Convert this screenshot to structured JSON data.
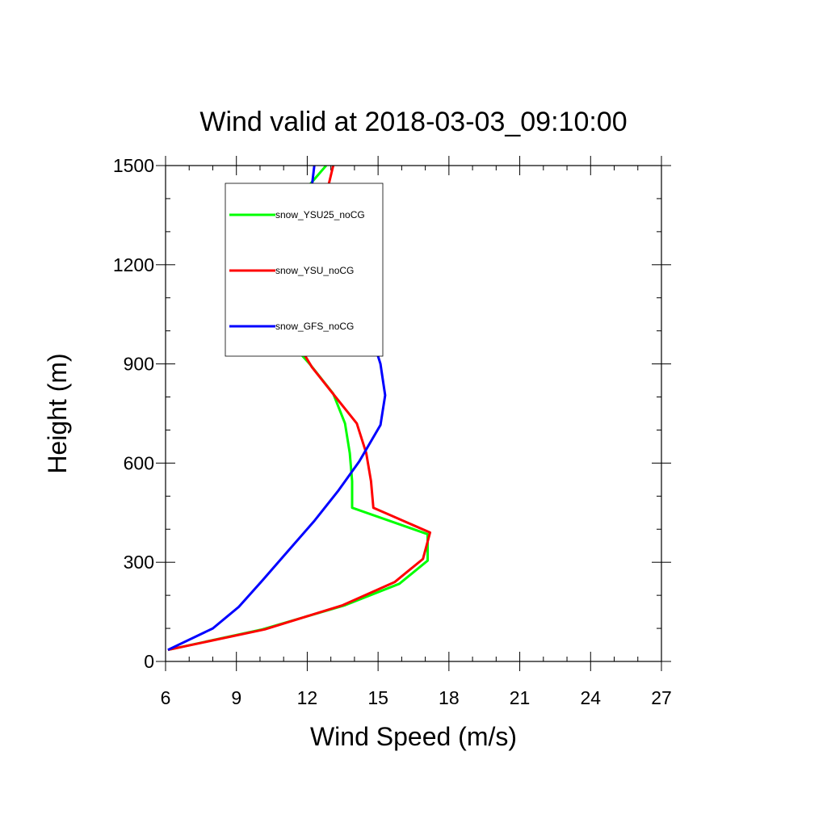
{
  "chart_data": {
    "type": "line",
    "title": "Wind valid at 2018-03-03_09:10:00",
    "xlabel": "Wind Speed (m/s)",
    "ylabel": "Height (m)",
    "xlim": [
      6,
      27
    ],
    "ylim": [
      0,
      1500
    ],
    "xticks": [
      6,
      9,
      12,
      15,
      18,
      21,
      24,
      27
    ],
    "yticks": [
      0,
      300,
      600,
      900,
      1200,
      1500
    ],
    "grid": false,
    "legend_position": "top-left",
    "series": [
      {
        "name": "snow_YSU25_noCG",
        "color": "#00ff00",
        "points": [
          [
            6.1,
            35
          ],
          [
            10.1,
            97
          ],
          [
            13.6,
            170
          ],
          [
            15.9,
            235
          ],
          [
            17.1,
            305
          ],
          [
            17.1,
            385
          ],
          [
            13.9,
            465
          ],
          [
            13.9,
            545
          ],
          [
            13.8,
            630
          ],
          [
            13.6,
            720
          ],
          [
            13.1,
            810
          ],
          [
            12.1,
            900
          ],
          [
            10.9,
            995
          ],
          [
            10.5,
            1095
          ],
          [
            10.3,
            1185
          ],
          [
            10.7,
            1295
          ],
          [
            11.6,
            1400
          ],
          [
            12.8,
            1500
          ]
        ]
      },
      {
        "name": "snow_YSU_noCG",
        "color": "#ff0000",
        "points": [
          [
            6.1,
            35
          ],
          [
            10.2,
            97
          ],
          [
            13.5,
            170
          ],
          [
            15.7,
            240
          ],
          [
            16.9,
            310
          ],
          [
            17.2,
            390
          ],
          [
            14.8,
            465
          ],
          [
            14.7,
            545
          ],
          [
            14.5,
            630
          ],
          [
            14.1,
            720
          ],
          [
            13.2,
            800
          ],
          [
            12.2,
            890
          ],
          [
            11.4,
            985
          ],
          [
            11.1,
            1090
          ],
          [
            11.0,
            1185
          ],
          [
            11.5,
            1305
          ],
          [
            12.8,
            1410
          ],
          [
            13.1,
            1500
          ]
        ]
      },
      {
        "name": "snow_GFS_noCG",
        "color": "#0000ff",
        "points": [
          [
            6.1,
            35
          ],
          [
            8.0,
            100
          ],
          [
            9.1,
            165
          ],
          [
            10.1,
            245
          ],
          [
            11.2,
            335
          ],
          [
            12.3,
            425
          ],
          [
            13.3,
            515
          ],
          [
            14.2,
            605
          ],
          [
            15.1,
            715
          ],
          [
            15.3,
            805
          ],
          [
            15.1,
            900
          ],
          [
            14.7,
            990
          ],
          [
            13.8,
            1090
          ],
          [
            12.7,
            1190
          ],
          [
            12.2,
            1290
          ],
          [
            12.1,
            1380
          ],
          [
            12.3,
            1500
          ]
        ]
      }
    ]
  }
}
